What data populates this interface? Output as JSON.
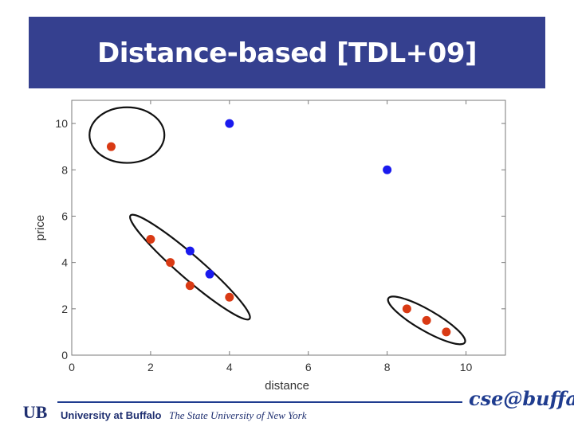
{
  "slide": {
    "title": "Distance-based [TDL+09]"
  },
  "chart_data": {
    "type": "scatter",
    "xlabel": "distance",
    "ylabel": "price",
    "xlim": [
      0,
      11
    ],
    "ylim": [
      0,
      11
    ],
    "xticks": [
      0,
      2,
      4,
      6,
      8,
      10
    ],
    "yticks": [
      0,
      2,
      4,
      6,
      8,
      10
    ],
    "series": [
      {
        "name": "red",
        "color": "#d93a14",
        "points": [
          [
            1,
            9
          ],
          [
            2,
            5
          ],
          [
            2.5,
            4
          ],
          [
            3,
            3
          ],
          [
            4,
            2.5
          ],
          [
            8.5,
            2
          ],
          [
            9,
            1.5
          ],
          [
            9.5,
            1
          ]
        ]
      },
      {
        "name": "blue",
        "color": "#1a1aee",
        "points": [
          [
            4,
            10
          ],
          [
            8,
            8
          ],
          [
            3,
            4.5
          ],
          [
            3.5,
            3.5
          ]
        ]
      }
    ],
    "clusters": [
      {
        "center": [
          1.4,
          9.5
        ],
        "rx": 0.95,
        "ry": 1.2,
        "angle_deg": 0
      },
      {
        "center": [
          3.0,
          3.8
        ],
        "rx": 2.0,
        "ry": 0.5,
        "angle_deg": 41
      },
      {
        "center": [
          9.0,
          1.5
        ],
        "rx": 1.12,
        "ry": 0.45,
        "angle_deg": 30
      }
    ]
  },
  "footer": {
    "university": "University at Buffalo",
    "subtitle": "The State University of New York",
    "brand": "cse@buffalo",
    "logo_text": "UB"
  }
}
